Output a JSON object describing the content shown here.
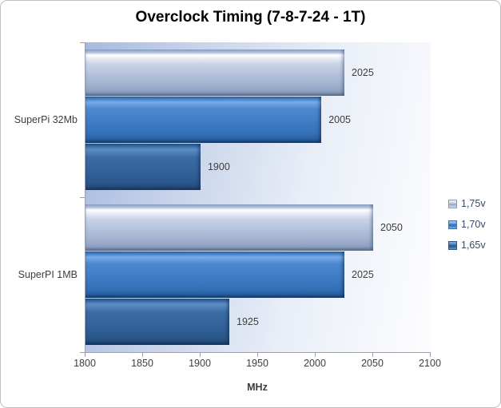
{
  "chart_data": {
    "type": "bar",
    "orientation": "horizontal",
    "title": "Overclock Timing (7-8-7-24 - 1T)",
    "categories": [
      "SuperPi 32Mb",
      "SuperPI 1MB"
    ],
    "series": [
      {
        "name": "1,75v",
        "values": [
          2025,
          2050
        ],
        "color": "#b3c0dc"
      },
      {
        "name": "1,70v",
        "values": [
          2005,
          2025
        ],
        "color": "#3d7cc4"
      },
      {
        "name": "1,65v",
        "values": [
          1900,
          1925
        ],
        "color": "#31619c"
      }
    ],
    "xlabel": "MHz",
    "xlim": [
      1800,
      2100
    ],
    "xticks": [
      1800,
      1850,
      1900,
      1950,
      2000,
      2050,
      2100
    ],
    "legend_position": "right",
    "grid": false,
    "data_labels": true,
    "colors": {
      "plot_bg_left": "#a6bae0",
      "plot_bg_right": "#ffffff",
      "axis_line": "#98a1b4",
      "text": "#3d3d3d",
      "title_text": "#000000",
      "legend_text": "#3a4a66",
      "frame_border": "#bfbfbf"
    }
  }
}
